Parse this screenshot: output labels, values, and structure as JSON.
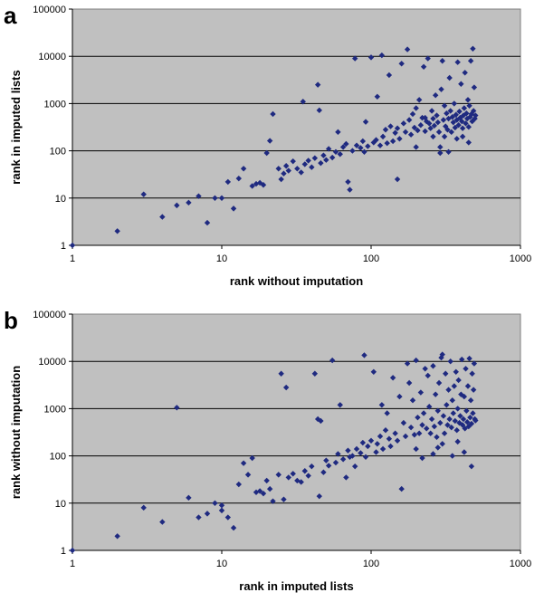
{
  "chart_data": [
    {
      "type": "scatter",
      "panel_label": "a",
      "xlabel": "rank without imputation",
      "ylabel": "rank in imputed lists",
      "xscale": "log",
      "yscale": "log",
      "xlim": [
        1,
        1000
      ],
      "ylim": [
        1,
        100000
      ],
      "x_ticks": [
        "1",
        "10",
        "100",
        "1000"
      ],
      "y_ticks": [
        "1",
        "10",
        "100",
        "1000",
        "10000",
        "100000"
      ],
      "grid": "horizontal",
      "background": "#c0c0c0",
      "marker_color": "#1f2a80",
      "points": [
        [
          1,
          1
        ],
        [
          2,
          2
        ],
        [
          3,
          12
        ],
        [
          4,
          4
        ],
        [
          5,
          7
        ],
        [
          6,
          8
        ],
        [
          7,
          11
        ],
        [
          8,
          3
        ],
        [
          9,
          10
        ],
        [
          10,
          10
        ],
        [
          11,
          22
        ],
        [
          12,
          6
        ],
        [
          13,
          26
        ],
        [
          14,
          42
        ],
        [
          16,
          18
        ],
        [
          17,
          20
        ],
        [
          18,
          21
        ],
        [
          19,
          19
        ],
        [
          20,
          90
        ],
        [
          21,
          163
        ],
        [
          22,
          600
        ],
        [
          24,
          42
        ],
        [
          25,
          25
        ],
        [
          26,
          33
        ],
        [
          27,
          48
        ],
        [
          28,
          38
        ],
        [
          30,
          60
        ],
        [
          32,
          42
        ],
        [
          34,
          35
        ],
        [
          35,
          1100
        ],
        [
          36,
          52
        ],
        [
          38,
          62
        ],
        [
          40,
          45
        ],
        [
          42,
          70
        ],
        [
          44,
          2500
        ],
        [
          45,
          720
        ],
        [
          46,
          55
        ],
        [
          48,
          80
        ],
        [
          50,
          64
        ],
        [
          52,
          110
        ],
        [
          55,
          72
        ],
        [
          58,
          95
        ],
        [
          60,
          250
        ],
        [
          62,
          85
        ],
        [
          65,
          120
        ],
        [
          68,
          140
        ],
        [
          70,
          22
        ],
        [
          72,
          15
        ],
        [
          75,
          100
        ],
        [
          78,
          9000
        ],
        [
          80,
          130
        ],
        [
          85,
          115
        ],
        [
          88,
          160
        ],
        [
          90,
          95
        ],
        [
          92,
          410
        ],
        [
          95,
          125
        ],
        [
          100,
          9500
        ],
        [
          104,
          150
        ],
        [
          108,
          170
        ],
        [
          110,
          1400
        ],
        [
          115,
          130
        ],
        [
          118,
          10500
        ],
        [
          120,
          200
        ],
        [
          125,
          280
        ],
        [
          128,
          145
        ],
        [
          132,
          4000
        ],
        [
          135,
          330
        ],
        [
          140,
          160
        ],
        [
          145,
          240
        ],
        [
          150,
          300
        ],
        [
          155,
          180
        ],
        [
          160,
          7000
        ],
        [
          165,
          380
        ],
        [
          170,
          250
        ],
        [
          175,
          14000
        ],
        [
          180,
          450
        ],
        [
          185,
          220
        ],
        [
          190,
          600
        ],
        [
          195,
          310
        ],
        [
          200,
          800
        ],
        [
          205,
          270
        ],
        [
          210,
          1200
        ],
        [
          215,
          350
        ],
        [
          220,
          500
        ],
        [
          225,
          6000
        ],
        [
          230,
          260
        ],
        [
          235,
          420
        ],
        [
          240,
          9000
        ],
        [
          245,
          380
        ],
        [
          250,
          300
        ],
        [
          255,
          700
        ],
        [
          260,
          480
        ],
        [
          265,
          340
        ],
        [
          270,
          1500
        ],
        [
          275,
          560
        ],
        [
          280,
          400
        ],
        [
          285,
          250
        ],
        [
          290,
          120
        ],
        [
          295,
          2000
        ],
        [
          300,
          8000
        ],
        [
          305,
          450
        ],
        [
          310,
          900
        ],
        [
          315,
          330
        ],
        [
          320,
          620
        ],
        [
          325,
          280
        ],
        [
          330,
          480
        ],
        [
          335,
          3500
        ],
        [
          340,
          700
        ],
        [
          345,
          250
        ],
        [
          350,
          520
        ],
        [
          355,
          400
        ],
        [
          360,
          1000
        ],
        [
          365,
          310
        ],
        [
          370,
          580
        ],
        [
          375,
          450
        ],
        [
          380,
          7500
        ],
        [
          385,
          350
        ],
        [
          390,
          680
        ],
        [
          395,
          500
        ],
        [
          400,
          2600
        ],
        [
          405,
          420
        ],
        [
          410,
          300
        ],
        [
          415,
          560
        ],
        [
          420,
          800
        ],
        [
          425,
          4500
        ],
        [
          430,
          380
        ],
        [
          435,
          620
        ],
        [
          440,
          480
        ],
        [
          445,
          1200
        ],
        [
          450,
          320
        ],
        [
          455,
          900
        ],
        [
          460,
          520
        ],
        [
          465,
          8000
        ],
        [
          470,
          600
        ],
        [
          475,
          420
        ],
        [
          480,
          14500
        ],
        [
          485,
          700
        ],
        [
          490,
          2200
        ],
        [
          495,
          480
        ],
        [
          500,
          560
        ],
        [
          290,
          90
        ],
        [
          330,
          95
        ],
        [
          410,
          200
        ],
        [
          150,
          25
        ],
        [
          200,
          120
        ],
        [
          260,
          200
        ],
        [
          375,
          180
        ],
        [
          450,
          150
        ],
        [
          230,
          500
        ],
        [
          310,
          200
        ]
      ]
    },
    {
      "type": "scatter",
      "panel_label": "b",
      "xlabel": "rank in imputed lists",
      "ylabel": "rank without imputation",
      "xscale": "log",
      "yscale": "log",
      "xlim": [
        1,
        1000
      ],
      "ylim": [
        1,
        100000
      ],
      "x_ticks": [
        "1",
        "10",
        "100",
        "1000"
      ],
      "y_ticks": [
        "1",
        "10",
        "100",
        "1000",
        "10000",
        "100000"
      ],
      "grid": "horizontal",
      "background": "#c0c0c0",
      "marker_color": "#1f2a80",
      "points": [
        [
          1,
          1
        ],
        [
          2,
          2
        ],
        [
          3,
          8
        ],
        [
          4,
          4
        ],
        [
          5,
          1050
        ],
        [
          6,
          13
        ],
        [
          7,
          5
        ],
        [
          8,
          6
        ],
        [
          9,
          10
        ],
        [
          10,
          9
        ],
        [
          10,
          7
        ],
        [
          11,
          5
        ],
        [
          12,
          3
        ],
        [
          13,
          25
        ],
        [
          14,
          70
        ],
        [
          15,
          40
        ],
        [
          16,
          90
        ],
        [
          17,
          17
        ],
        [
          18,
          18
        ],
        [
          19,
          16
        ],
        [
          20,
          30
        ],
        [
          21,
          20
        ],
        [
          22,
          11
        ],
        [
          24,
          40
        ],
        [
          25,
          5500
        ],
        [
          26,
          12
        ],
        [
          27,
          2800
        ],
        [
          28,
          35
        ],
        [
          30,
          42
        ],
        [
          32,
          30
        ],
        [
          34,
          28
        ],
        [
          36,
          48
        ],
        [
          38,
          38
        ],
        [
          40,
          60
        ],
        [
          42,
          5500
        ],
        [
          44,
          600
        ],
        [
          45,
          14
        ],
        [
          46,
          550
        ],
        [
          48,
          45
        ],
        [
          50,
          80
        ],
        [
          52,
          62
        ],
        [
          55,
          10500
        ],
        [
          58,
          72
        ],
        [
          60,
          110
        ],
        [
          62,
          1200
        ],
        [
          65,
          85
        ],
        [
          68,
          35
        ],
        [
          70,
          130
        ],
        [
          72,
          95
        ],
        [
          75,
          100
        ],
        [
          78,
          60
        ],
        [
          80,
          140
        ],
        [
          85,
          115
        ],
        [
          88,
          190
        ],
        [
          90,
          13500
        ],
        [
          92,
          95
        ],
        [
          95,
          160
        ],
        [
          100,
          210
        ],
        [
          104,
          6000
        ],
        [
          108,
          120
        ],
        [
          110,
          180
        ],
        [
          115,
          260
        ],
        [
          118,
          1200
        ],
        [
          120,
          140
        ],
        [
          125,
          350
        ],
        [
          128,
          800
        ],
        [
          132,
          230
        ],
        [
          135,
          160
        ],
        [
          140,
          4500
        ],
        [
          145,
          300
        ],
        [
          150,
          210
        ],
        [
          155,
          1800
        ],
        [
          160,
          20
        ],
        [
          165,
          500
        ],
        [
          170,
          260
        ],
        [
          175,
          9000
        ],
        [
          180,
          3500
        ],
        [
          185,
          400
        ],
        [
          190,
          1500
        ],
        [
          195,
          280
        ],
        [
          200,
          10500
        ],
        [
          205,
          650
        ],
        [
          210,
          300
        ],
        [
          215,
          2200
        ],
        [
          220,
          450
        ],
        [
          225,
          800
        ],
        [
          230,
          7000
        ],
        [
          235,
          380
        ],
        [
          240,
          5000
        ],
        [
          245,
          1100
        ],
        [
          250,
          300
        ],
        [
          255,
          600
        ],
        [
          260,
          8000
        ],
        [
          265,
          420
        ],
        [
          270,
          2000
        ],
        [
          275,
          250
        ],
        [
          280,
          900
        ],
        [
          285,
          3500
        ],
        [
          290,
          500
        ],
        [
          295,
          12000
        ],
        [
          300,
          14000
        ],
        [
          305,
          700
        ],
        [
          310,
          300
        ],
        [
          315,
          5500
        ],
        [
          320,
          1200
        ],
        [
          325,
          450
        ],
        [
          330,
          2500
        ],
        [
          335,
          600
        ],
        [
          340,
          10000
        ],
        [
          345,
          400
        ],
        [
          350,
          1500
        ],
        [
          355,
          800
        ],
        [
          360,
          3000
        ],
        [
          365,
          550
        ],
        [
          370,
          6000
        ],
        [
          375,
          350
        ],
        [
          380,
          1000
        ],
        [
          385,
          4000
        ],
        [
          390,
          500
        ],
        [
          395,
          700
        ],
        [
          400,
          2000
        ],
        [
          405,
          11000
        ],
        [
          410,
          450
        ],
        [
          415,
          600
        ],
        [
          420,
          1800
        ],
        [
          425,
          380
        ],
        [
          430,
          7000
        ],
        [
          435,
          900
        ],
        [
          440,
          520
        ],
        [
          445,
          3000
        ],
        [
          450,
          420
        ],
        [
          455,
          11500
        ],
        [
          460,
          650
        ],
        [
          465,
          1500
        ],
        [
          470,
          480
        ],
        [
          475,
          5500
        ],
        [
          480,
          800
        ],
        [
          485,
          2500
        ],
        [
          490,
          9000
        ],
        [
          495,
          600
        ],
        [
          470,
          60
        ],
        [
          350,
          100
        ],
        [
          280,
          150
        ],
        [
          220,
          90
        ],
        [
          420,
          120
        ],
        [
          380,
          200
        ],
        [
          300,
          180
        ],
        [
          260,
          110
        ],
        [
          200,
          140
        ],
        [
          500,
          560
        ]
      ]
    }
  ]
}
